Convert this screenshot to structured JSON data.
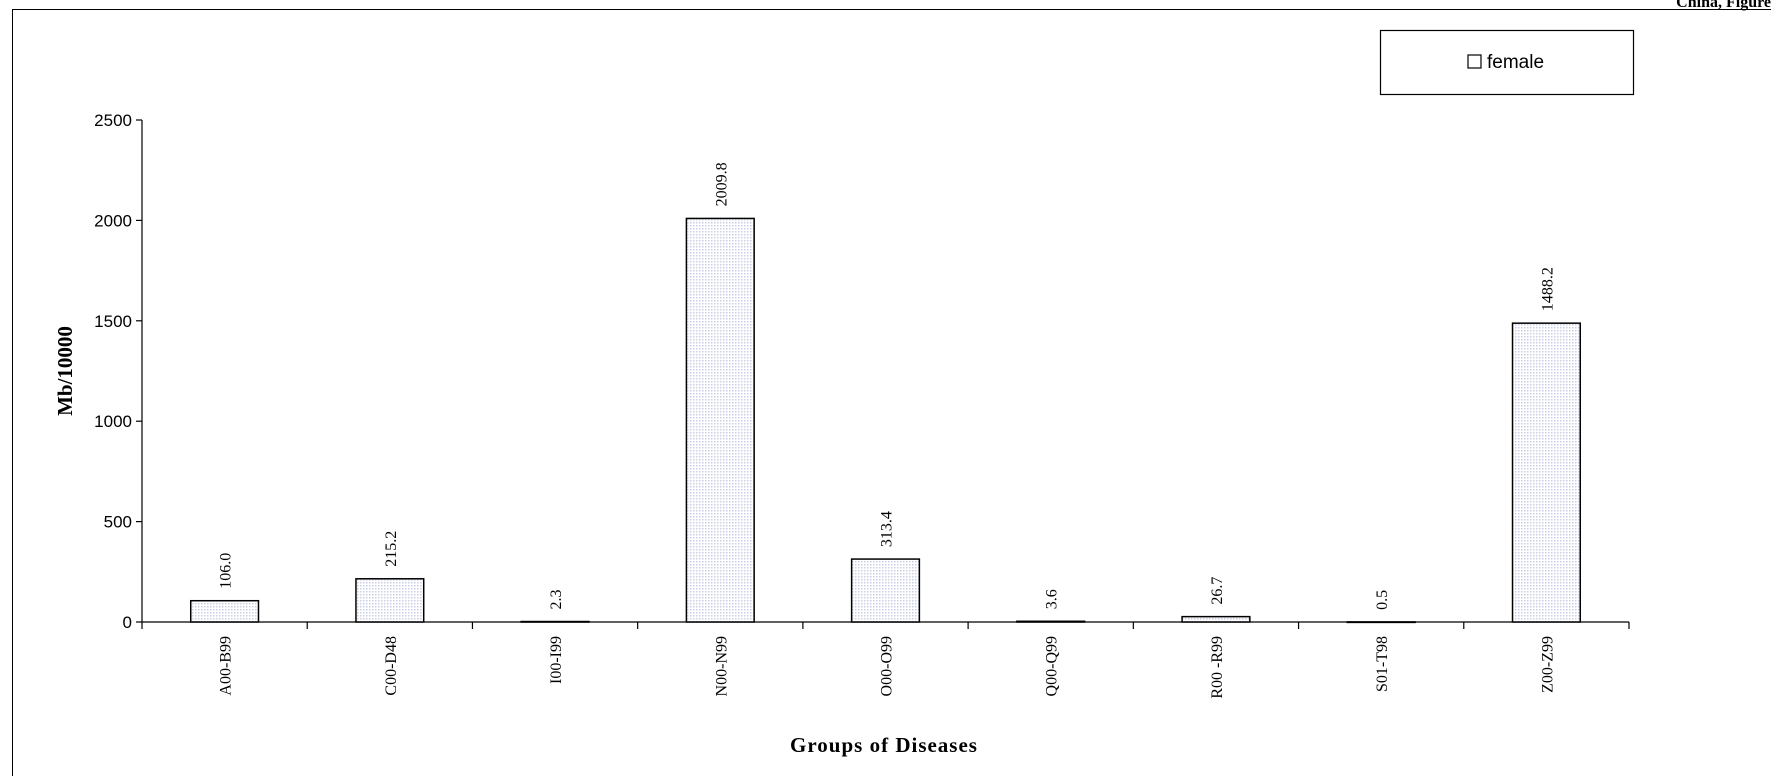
{
  "header_text": "China, Figure",
  "chart_data": {
    "type": "bar",
    "categories": [
      "A00-B99",
      "C00-D48",
      "I00-I99",
      "N00-N99",
      "O00-O99",
      "Q00-Q99",
      "R00 -R99",
      "S01-T98",
      "Z00-Z99"
    ],
    "series": [
      {
        "name": "female",
        "values": [
          106.0,
          215.2,
          2.3,
          2009.8,
          313.4,
          3.6,
          26.7,
          0.5,
          1488.2
        ]
      }
    ],
    "data_labels": [
      "106.0",
      "215.2",
      "2.3",
      "2009.8",
      "313.4",
      "3.6",
      "26.7",
      "0.5",
      "1488.2"
    ],
    "title": "",
    "xlabel": "Groups of Diseases",
    "ylabel": "Mb/10000",
    "ylim": [
      0,
      2500
    ],
    "yticks": [
      0,
      500,
      1000,
      1500,
      2000,
      2500
    ],
    "grid": false,
    "legend": {
      "position": "top-right",
      "entries": [
        "female"
      ]
    },
    "colors": {
      "bar_fill": "#eef0f8",
      "bar_stroke": "#000000",
      "axis": "#000000"
    }
  }
}
